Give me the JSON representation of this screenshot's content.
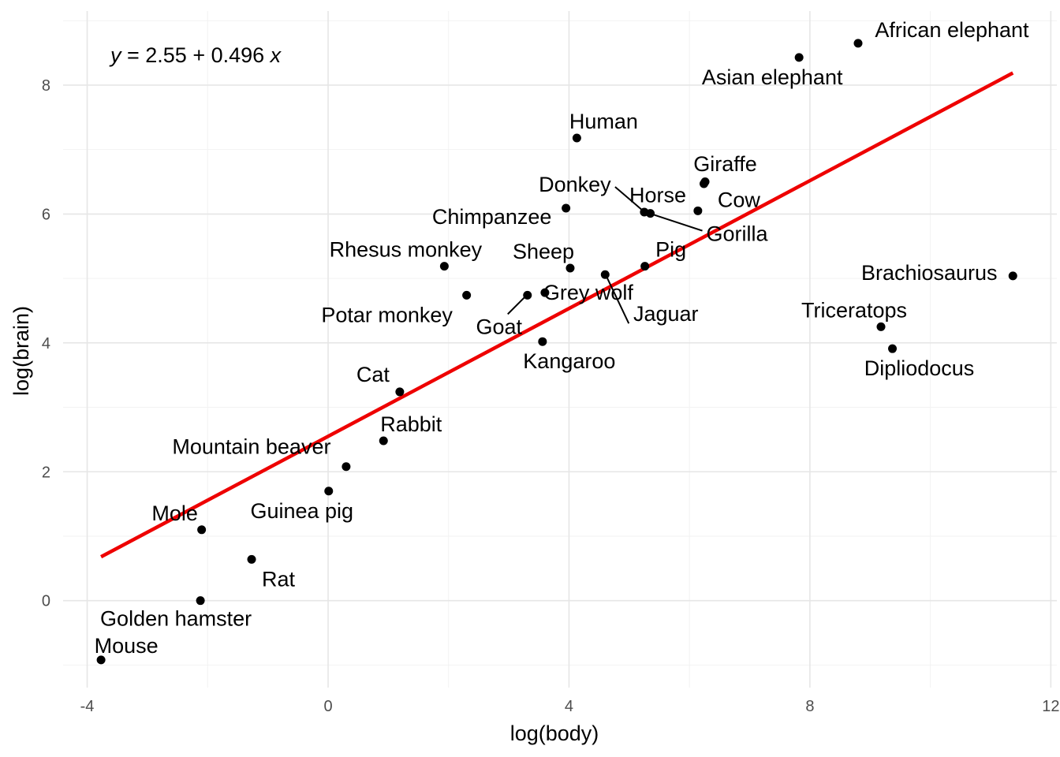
{
  "chart_data": {
    "type": "scatter",
    "xlabel": "log(body)",
    "ylabel": "log(brain)",
    "xlim": [
      -4.4,
      12.1
    ],
    "ylim": [
      -1.35,
      9.15
    ],
    "x_ticks": [
      -4,
      0,
      4,
      8,
      12
    ],
    "y_ticks": [
      0,
      2,
      4,
      6,
      8
    ],
    "x_tick_labels": [
      "-4",
      "0",
      "4",
      "8",
      "12"
    ],
    "y_tick_labels": [
      "0",
      "2",
      "4",
      "6",
      "8"
    ],
    "grid": true,
    "equation": {
      "y_var": "y",
      "middle": " = 2.55 + 0.496 ",
      "x_var": "x"
    },
    "regression": {
      "intercept": 2.55,
      "slope": 0.496,
      "x_range": [
        -3.77,
        11.37
      ],
      "color": "#ee0000"
    },
    "point_color": "#000000",
    "points": [
      {
        "label": "Mountain beaver",
        "x": 0.3,
        "y": 2.08
      },
      {
        "label": "Cow",
        "x": 6.14,
        "y": 6.05
      },
      {
        "label": "Grey wolf",
        "x": 3.6,
        "y": 4.78
      },
      {
        "label": "Goat",
        "x": 3.31,
        "y": 4.74
      },
      {
        "label": "Guinea pig",
        "x": 0.01,
        "y": 1.7
      },
      {
        "label": "Dipliodocus",
        "x": 9.37,
        "y": 3.91
      },
      {
        "label": "Asian elephant",
        "x": 7.82,
        "y": 8.43
      },
      {
        "label": "Donkey",
        "x": 5.25,
        "y": 6.03
      },
      {
        "label": "Horse",
        "x": 6.26,
        "y": 6.5
      },
      {
        "label": "Potar monkey",
        "x": 2.3,
        "y": 4.74
      },
      {
        "label": "Cat",
        "x": 1.19,
        "y": 3.24
      },
      {
        "label": "Giraffe",
        "x": 6.24,
        "y": 6.47
      },
      {
        "label": "Gorilla",
        "x": 5.35,
        "y": 6.01
      },
      {
        "label": "Human",
        "x": 4.13,
        "y": 7.18
      },
      {
        "label": "African elephant",
        "x": 8.8,
        "y": 8.65
      },
      {
        "label": "Triceratops",
        "x": 9.18,
        "y": 4.25
      },
      {
        "label": "Rhesus monkey",
        "x": 1.93,
        "y": 5.19
      },
      {
        "label": "Kangaroo",
        "x": 3.56,
        "y": 4.02
      },
      {
        "label": "Golden hamster",
        "x": -2.12,
        "y": 0.0
      },
      {
        "label": "Mouse",
        "x": -3.77,
        "y": -0.92
      },
      {
        "label": "Rabbit",
        "x": 0.92,
        "y": 2.48
      },
      {
        "label": "Sheep",
        "x": 4.02,
        "y": 5.16
      },
      {
        "label": "Jaguar",
        "x": 4.6,
        "y": 5.06
      },
      {
        "label": "Chimpanzee",
        "x": 3.95,
        "y": 6.09
      },
      {
        "label": "Rat",
        "x": -1.27,
        "y": 0.64
      },
      {
        "label": "Brachiosaurus",
        "x": 11.37,
        "y": 5.04
      },
      {
        "label": "Mole",
        "x": -2.1,
        "y": 1.1
      },
      {
        "label": "Pig",
        "x": 5.26,
        "y": 5.19
      }
    ]
  }
}
